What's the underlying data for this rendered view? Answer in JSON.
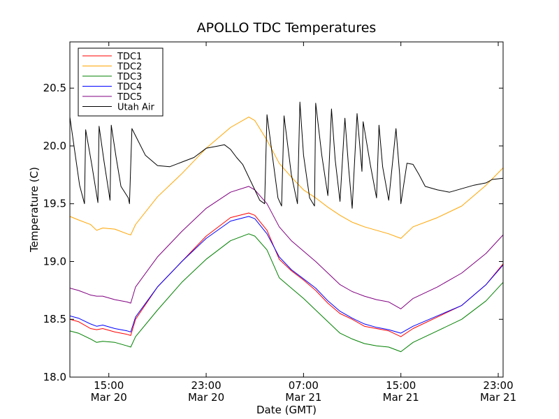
{
  "chart_data": {
    "type": "line",
    "title": "APOLLO TDC Temperatures",
    "xlabel": "Date (GMT)",
    "ylabel": "Temperature (C)",
    "xlim": [
      11.8,
      47.4
    ],
    "ylim": [
      18.0,
      20.9
    ],
    "x_unit": "hours since Mar 20 00:00 GMT",
    "x_ticks": [
      {
        "value": 15,
        "time": "15:00",
        "date": "Mar 20"
      },
      {
        "value": 23,
        "time": "23:00",
        "date": "Mar 20"
      },
      {
        "value": 31,
        "time": "07:00",
        "date": "Mar 21"
      },
      {
        "value": 39,
        "time": "15:00",
        "date": "Mar 21"
      },
      {
        "value": 47,
        "time": "23:00",
        "date": "Mar 21"
      }
    ],
    "y_ticks": [
      {
        "value": 18.0,
        "label": "18.0"
      },
      {
        "value": 18.5,
        "label": "18.5"
      },
      {
        "value": 19.0,
        "label": "19.0"
      },
      {
        "value": 19.5,
        "label": "19.5"
      },
      {
        "value": 20.0,
        "label": "20.0"
      },
      {
        "value": 20.5,
        "label": "20.5"
      }
    ],
    "grid": false,
    "legend_position": "top-left",
    "series": [
      {
        "name": "TDC1",
        "color": "#ff0000",
        "x": [
          11.8,
          12.5,
          13.5,
          14.0,
          14.5,
          15.5,
          16.5,
          16.8,
          17.2,
          19.0,
          21.0,
          23.0,
          25.0,
          26.5,
          27.0,
          28.0,
          29.0,
          30.0,
          31.0,
          32.0,
          33.0,
          34.0,
          35.0,
          36.0,
          37.0,
          38.0,
          39.0,
          40.0,
          42.0,
          44.0,
          46.0,
          47.4
        ],
        "y": [
          18.5,
          18.48,
          18.42,
          18.41,
          18.42,
          18.39,
          18.37,
          18.36,
          18.5,
          18.78,
          19.0,
          19.22,
          19.38,
          19.42,
          19.4,
          19.27,
          19.02,
          18.92,
          18.84,
          18.75,
          18.64,
          18.55,
          18.5,
          18.44,
          18.42,
          18.4,
          18.35,
          18.42,
          18.52,
          18.62,
          18.8,
          18.98
        ]
      },
      {
        "name": "TDC2",
        "color": "#ffa500",
        "x": [
          11.8,
          12.5,
          13.5,
          14.0,
          14.5,
          15.5,
          16.5,
          16.8,
          17.2,
          19.0,
          21.0,
          23.0,
          25.0,
          26.5,
          27.0,
          28.0,
          29.0,
          30.0,
          31.0,
          32.0,
          33.0,
          34.0,
          35.0,
          36.0,
          37.0,
          38.0,
          39.0,
          40.0,
          42.0,
          44.0,
          46.0,
          47.4
        ],
        "y": [
          19.39,
          19.36,
          19.32,
          19.27,
          19.29,
          19.28,
          19.24,
          19.23,
          19.32,
          19.56,
          19.76,
          19.98,
          20.16,
          20.25,
          20.22,
          20.05,
          19.85,
          19.73,
          19.62,
          19.55,
          19.47,
          19.4,
          19.34,
          19.3,
          19.27,
          19.24,
          19.2,
          19.3,
          19.38,
          19.48,
          19.66,
          19.81
        ]
      },
      {
        "name": "TDC3",
        "color": "#008000",
        "x": [
          11.8,
          12.5,
          13.5,
          14.0,
          14.5,
          15.5,
          16.5,
          16.8,
          17.2,
          19.0,
          21.0,
          23.0,
          25.0,
          26.5,
          27.0,
          28.0,
          29.0,
          30.0,
          31.0,
          32.0,
          33.0,
          34.0,
          35.0,
          36.0,
          37.0,
          38.0,
          39.0,
          40.0,
          42.0,
          44.0,
          46.0,
          47.4
        ],
        "y": [
          18.4,
          18.38,
          18.33,
          18.3,
          18.31,
          18.3,
          18.27,
          18.26,
          18.35,
          18.58,
          18.82,
          19.02,
          19.18,
          19.24,
          19.22,
          19.1,
          18.86,
          18.77,
          18.68,
          18.58,
          18.48,
          18.38,
          18.33,
          18.29,
          18.27,
          18.26,
          18.22,
          18.3,
          18.4,
          18.5,
          18.66,
          18.82
        ]
      },
      {
        "name": "TDC4",
        "color": "#0000ff",
        "x": [
          11.8,
          12.5,
          13.5,
          14.0,
          14.5,
          15.5,
          16.5,
          16.8,
          17.2,
          19.0,
          21.0,
          23.0,
          25.0,
          26.5,
          27.0,
          28.0,
          29.0,
          30.0,
          31.0,
          32.0,
          33.0,
          34.0,
          35.0,
          36.0,
          37.0,
          38.0,
          39.0,
          40.0,
          42.0,
          44.0,
          46.0,
          47.4
        ],
        "y": [
          18.53,
          18.51,
          18.46,
          18.44,
          18.45,
          18.42,
          18.4,
          18.39,
          18.52,
          18.78,
          19.0,
          19.2,
          19.35,
          19.39,
          19.37,
          19.24,
          19.04,
          18.93,
          18.85,
          18.77,
          18.66,
          18.57,
          18.51,
          18.46,
          18.43,
          18.41,
          18.38,
          18.44,
          18.53,
          18.62,
          18.8,
          18.97
        ]
      },
      {
        "name": "TDC5",
        "color": "#800080",
        "x": [
          11.8,
          12.5,
          13.5,
          14.0,
          14.5,
          15.5,
          16.5,
          16.8,
          17.2,
          19.0,
          21.0,
          23.0,
          25.0,
          26.5,
          27.0,
          28.0,
          29.0,
          30.0,
          31.0,
          32.0,
          33.0,
          34.0,
          35.0,
          36.0,
          37.0,
          38.0,
          39.0,
          40.0,
          42.0,
          44.0,
          46.0,
          47.4
        ],
        "y": [
          18.77,
          18.75,
          18.71,
          18.7,
          18.7,
          18.67,
          18.65,
          18.64,
          18.78,
          19.04,
          19.26,
          19.46,
          19.6,
          19.65,
          19.62,
          19.5,
          19.3,
          19.18,
          19.09,
          19.0,
          18.9,
          18.8,
          18.74,
          18.7,
          18.67,
          18.65,
          18.59,
          18.68,
          18.78,
          18.9,
          19.07,
          19.23
        ]
      },
      {
        "name": "Utah Air",
        "color": "#000000",
        "x": [
          11.8,
          12.6,
          13.0,
          13.1,
          13.6,
          14.1,
          14.2,
          14.6,
          15.1,
          15.2,
          15.6,
          16.0,
          16.6,
          16.7,
          16.9,
          18.0,
          19.0,
          20.0,
          21.0,
          22.0,
          23.0,
          24.0,
          24.5,
          25.0,
          25.5,
          26.0,
          27.0,
          27.4,
          27.8,
          28.0,
          28.9,
          29.2,
          29.4,
          30.0,
          30.5,
          30.7,
          31.0,
          31.5,
          31.9,
          32.0,
          32.5,
          33.0,
          33.3,
          33.6,
          34.0,
          34.4,
          34.7,
          35.0,
          35.4,
          35.8,
          35.9,
          36.5,
          37.0,
          37.2,
          37.5,
          38.0,
          38.6,
          38.9,
          39.0,
          39.5,
          40.0,
          40.5,
          41.0,
          42.0,
          43.0,
          44.0,
          45.0,
          46.0,
          46.5,
          47.4
        ],
        "y": [
          20.25,
          19.66,
          19.5,
          20.14,
          19.84,
          19.51,
          20.17,
          19.87,
          19.53,
          20.18,
          19.9,
          19.65,
          19.55,
          19.5,
          20.15,
          19.92,
          19.83,
          19.82,
          19.86,
          19.9,
          19.98,
          20.0,
          20.01,
          19.97,
          19.9,
          19.84,
          19.62,
          19.53,
          19.5,
          20.27,
          19.55,
          19.48,
          20.26,
          19.75,
          19.5,
          20.38,
          19.92,
          19.55,
          19.48,
          20.37,
          19.92,
          19.57,
          20.32,
          19.88,
          19.52,
          20.24,
          19.82,
          19.46,
          20.28,
          19.78,
          20.21,
          19.83,
          19.55,
          20.18,
          19.82,
          19.53,
          20.15,
          19.75,
          19.5,
          19.85,
          19.84,
          19.75,
          19.65,
          19.62,
          19.6,
          19.63,
          19.66,
          19.68,
          19.71,
          19.72
        ]
      }
    ]
  }
}
